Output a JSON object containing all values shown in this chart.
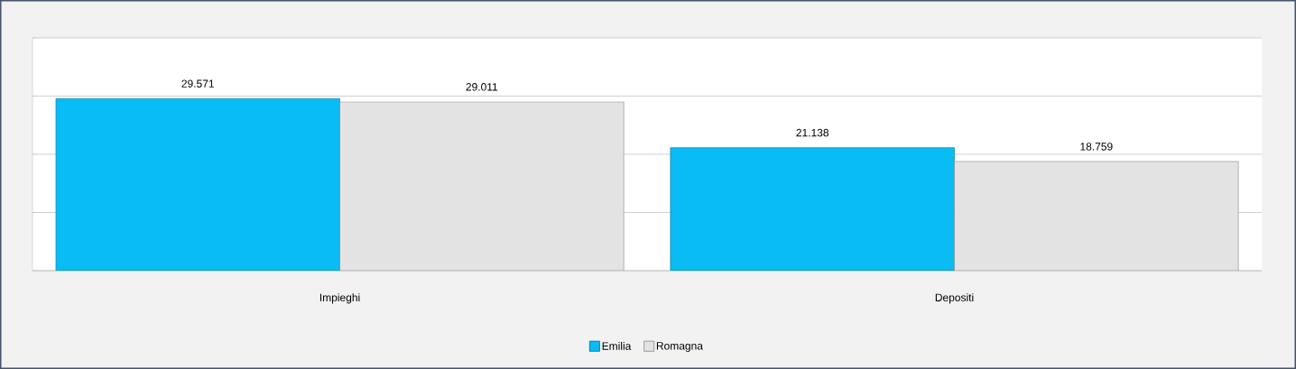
{
  "chart_data": {
    "type": "bar",
    "categories": [
      "Impieghi",
      "Depositi"
    ],
    "series": [
      {
        "name": "Emilia",
        "color": "#0abcf4",
        "values": [
          29.571,
          21.138
        ]
      },
      {
        "name": "Romagna",
        "color": "#e3e3e3",
        "values": [
          29.011,
          18.759
        ]
      }
    ],
    "ylim": [
      0,
      40
    ],
    "yticks": [
      {
        "value": 0,
        "label": null
      },
      {
        "value": 10,
        "label": null
      },
      {
        "value": 20,
        "label": null
      },
      {
        "value": 30,
        "label": null
      },
      {
        "value": 40,
        "label": null
      }
    ],
    "grid": "y",
    "legend": "bottom",
    "data_labels": true,
    "tick_labels": "x"
  }
}
